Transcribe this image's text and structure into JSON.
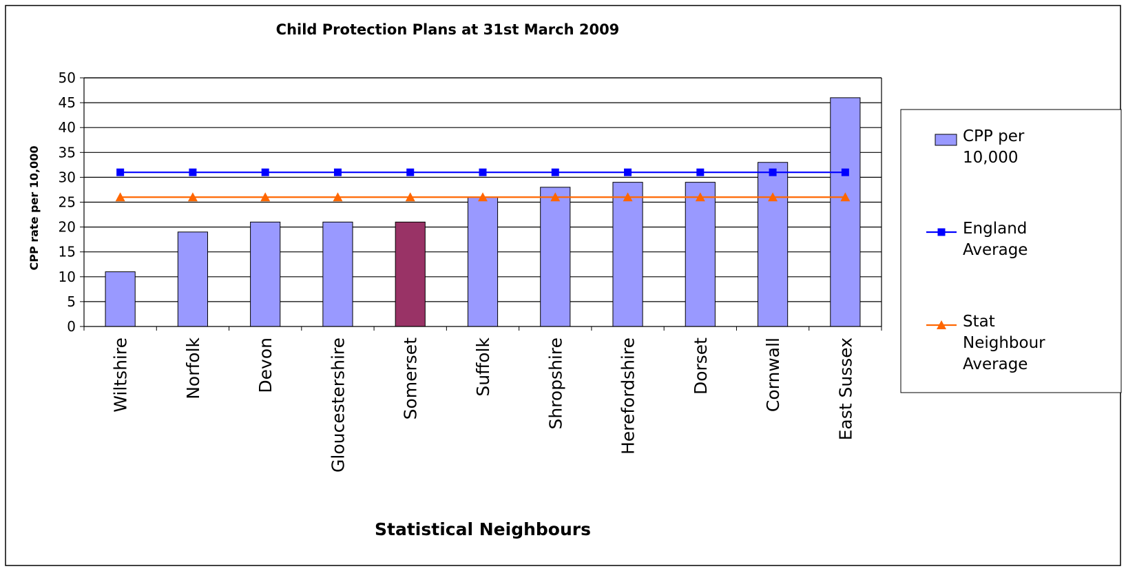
{
  "chart_data": {
    "type": "bar",
    "title": "Child Protection Plans at 31st March 2009",
    "xlabel": "Statistical Neighbours",
    "ylabel": "CPP rate per 10,000",
    "ylim": [
      0,
      50
    ],
    "yticks": [
      0,
      5,
      10,
      15,
      20,
      25,
      30,
      35,
      40,
      45,
      50
    ],
    "grid": true,
    "legend_position": "right",
    "categories": [
      "Wiltshire",
      "Norfolk",
      "Devon",
      "Gloucestershire",
      "Somerset",
      "Suffolk",
      "Shropshire",
      "Herefordshire",
      "Dorset",
      "Cornwall",
      "East Sussex"
    ],
    "highlight_category": "Somerset",
    "colors": {
      "bar": "#9999ff",
      "bar_highlight": "#993366",
      "england": "#0000ff",
      "stat_neighbour": "#ff6600",
      "grid": "#000000"
    },
    "series": [
      {
        "name": "CPP per 10,000",
        "kind": "bar",
        "values": [
          11,
          19,
          21,
          21,
          21,
          26,
          28,
          29,
          29,
          33,
          46
        ]
      },
      {
        "name": "England Average",
        "kind": "line",
        "marker": "square",
        "values": [
          31,
          31,
          31,
          31,
          31,
          31,
          31,
          31,
          31,
          31,
          31
        ]
      },
      {
        "name": "Stat Neighbour Average",
        "kind": "line",
        "marker": "triangle",
        "values": [
          26,
          26,
          26,
          26,
          26,
          26,
          26,
          26,
          26,
          26,
          26
        ]
      }
    ],
    "legend": [
      {
        "lines": [
          "CPP per",
          "10,000"
        ]
      },
      {
        "lines": [
          "England",
          "Average"
        ]
      },
      {
        "lines": [
          "Stat",
          "Neighbour",
          "Average"
        ]
      }
    ]
  }
}
